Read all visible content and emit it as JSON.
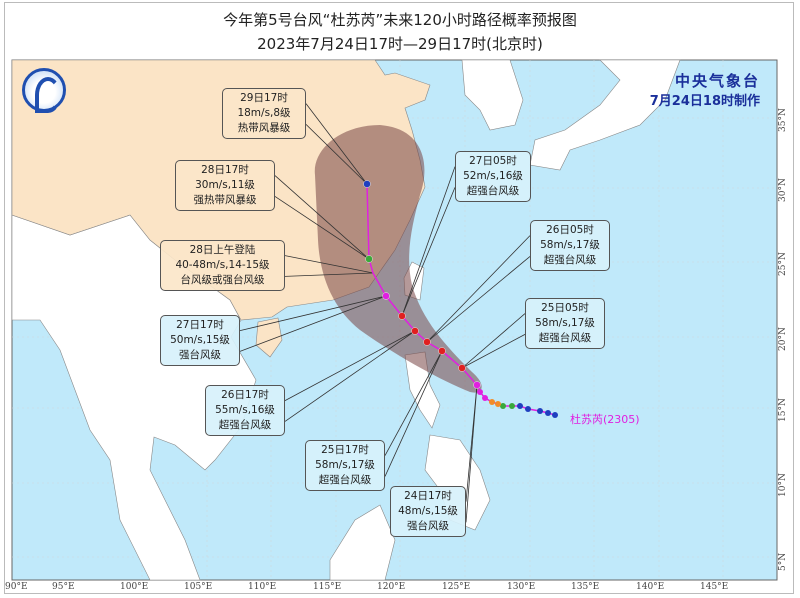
{
  "title": "今年第5号台风“杜苏芮”未来120小时路径概率预报图",
  "subtitle": "2023年7月24日17时—29日17时(北京时)",
  "agency": {
    "name": "中央气象台",
    "issued": "7月24日18时制作"
  },
  "logo_icon": "cma-logo-icon",
  "storm": {
    "name": "杜苏芮(2305)",
    "color": "#e020e0"
  },
  "forecast_labels": [
    {
      "time": "29日17时",
      "wind": "18m/s,8级",
      "level": "热带风暴级"
    },
    {
      "time": "28日17时",
      "wind": "30m/s,11级",
      "level": "强热带风暴级"
    },
    {
      "time": "28日上午登陆",
      "wind": "40-48m/s,14-15级",
      "level": "台风级或强台风级"
    },
    {
      "time": "27日17时",
      "wind": "50m/s,15级",
      "level": "强台风级"
    },
    {
      "time": "26日17时",
      "wind": "55m/s,16级",
      "level": "超强台风级"
    },
    {
      "time": "25日17时",
      "wind": "58m/s,17级",
      "level": "超强台风级"
    },
    {
      "time": "24日17时",
      "wind": "48m/s,15级",
      "level": "强台风级"
    },
    {
      "time": "27日05时",
      "wind": "52m/s,16级",
      "level": "超强台风级"
    },
    {
      "time": "26日05时",
      "wind": "58m/s,17级",
      "level": "超强台风级"
    },
    {
      "time": "25日05时",
      "wind": "58m/s,17级",
      "level": "超强台风级"
    }
  ],
  "lon_ticks": [
    "90°E",
    "95°E",
    "100°E",
    "105°E",
    "110°E",
    "115°E",
    "120°E",
    "125°E",
    "130°E",
    "135°E",
    "140°E",
    "145°E"
  ],
  "lat_ticks": [
    "35°N",
    "30°N",
    "25°N",
    "20°N",
    "15°N",
    "10°N",
    "5°N"
  ],
  "colors": {
    "sea": "#c0e9fa",
    "china_land": "#fbe4c6",
    "other_land": "#ffffff",
    "cone": "#8a5a5a",
    "track": "#e020e0",
    "tropical_storm": "#1f3fbf",
    "severe_tropical_storm": "#3aa83a",
    "typhoon": "#f28c28",
    "severe_typhoon": "#e020e0",
    "super_typhoon": "#e02020"
  }
}
